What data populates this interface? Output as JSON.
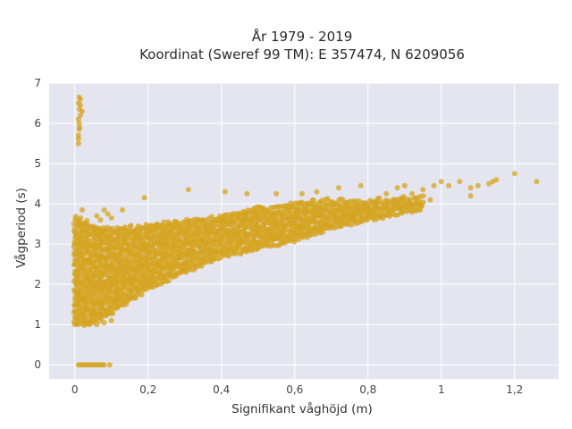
{
  "colors": {
    "plot_bg": "#e5e5ef",
    "grid": "#ffffff",
    "marker": "#d4a420"
  },
  "chart_data": {
    "type": "scatter",
    "title": "År 1979 - 2019",
    "subtitle": "Koordinat (Sweref 99 TM): E 357474, N 6209056",
    "xlabel": "Signifikant våghöjd (m)",
    "ylabel": "Vågperiod (s)",
    "xlim": [
      -0.07,
      1.32
    ],
    "ylim": [
      -0.35,
      7.0
    ],
    "x_ticks": [
      0,
      0.2,
      0.4,
      0.6,
      0.8,
      1,
      1.2
    ],
    "x_tick_labels": [
      "0",
      "0,2",
      "0,4",
      "0,6",
      "0,8",
      "1",
      "1,2"
    ],
    "y_ticks": [
      0,
      1,
      2,
      3,
      4,
      5,
      6,
      7
    ],
    "y_tick_labels": [
      "0",
      "1",
      "2",
      "3",
      "4",
      "5",
      "6",
      "7"
    ],
    "grid": true,
    "legend": "none",
    "series": [
      {
        "points": [
          [
            0.01,
            0
          ],
          [
            0.015,
            0
          ],
          [
            0.02,
            0
          ],
          [
            0.025,
            0
          ],
          [
            0.03,
            0
          ],
          [
            0.035,
            0
          ],
          [
            0.04,
            0
          ],
          [
            0.045,
            0
          ],
          [
            0.05,
            0
          ],
          [
            0.055,
            0
          ],
          [
            0.06,
            0
          ],
          [
            0.065,
            0
          ],
          [
            0.07,
            0
          ],
          [
            0.075,
            0
          ],
          [
            0.08,
            0
          ],
          [
            0.095,
            0
          ],
          [
            0.01,
            5.5
          ],
          [
            0.01,
            5.7
          ],
          [
            0.012,
            5.85
          ],
          [
            0.012,
            6.0
          ],
          [
            0.01,
            6.1
          ],
          [
            0.015,
            6.2
          ],
          [
            0.013,
            6.35
          ],
          [
            0.01,
            6.5
          ],
          [
            0.015,
            6.6
          ],
          [
            0.012,
            6.65
          ],
          [
            0.015,
            6.45
          ],
          [
            0.013,
            5.9
          ],
          [
            0.02,
            6.3
          ],
          [
            0.01,
            5.62
          ],
          [
            1.2,
            4.75
          ],
          [
            1.26,
            4.55
          ],
          [
            1.14,
            4.55
          ],
          [
            1.13,
            4.5
          ],
          [
            1.1,
            4.45
          ],
          [
            1.05,
            4.55
          ],
          [
            1.08,
            4.4
          ],
          [
            1.0,
            4.55
          ],
          [
            0.98,
            4.45
          ],
          [
            1.02,
            4.45
          ],
          [
            0.95,
            4.35
          ],
          [
            0.92,
            4.25
          ],
          [
            0.97,
            4.1
          ],
          [
            1.08,
            4.2
          ],
          [
            1.15,
            4.6
          ],
          [
            0.9,
            4.45
          ],
          [
            0.85,
            4.25
          ],
          [
            0.88,
            4.4
          ],
          [
            0.78,
            4.45
          ],
          [
            0.72,
            4.4
          ],
          [
            0.66,
            4.3
          ],
          [
            0.62,
            4.25
          ],
          [
            0.55,
            4.25
          ],
          [
            0.47,
            4.25
          ],
          [
            0.41,
            4.3
          ],
          [
            0.31,
            4.35
          ],
          [
            0.19,
            4.15
          ],
          [
            0.13,
            3.85
          ],
          [
            0.1,
            3.65
          ],
          [
            0.08,
            3.85
          ],
          [
            0.02,
            3.85
          ],
          [
            0.09,
            3.75
          ],
          [
            0.06,
            3.7
          ],
          [
            0.07,
            3.6
          ],
          [
            0.05,
            3.4
          ],
          [
            0.03,
            3.2
          ],
          [
            0.01,
            2.95
          ],
          [
            0.02,
            2.7
          ],
          [
            0.04,
            1.0
          ],
          [
            0.06,
            1.0
          ],
          [
            0.08,
            1.05
          ],
          [
            0.1,
            1.1
          ],
          [
            0.07,
            1.2
          ],
          [
            0.09,
            1.3
          ],
          [
            0.01,
            1.8
          ],
          [
            0.01,
            1.6
          ],
          [
            0.01,
            1.5
          ]
        ],
        "density_band": {
          "x_range": [
            0.0,
            0.95
          ],
          "upper": [
            [
              0.0,
              3.7
            ],
            [
              0.05,
              3.5
            ],
            [
              0.1,
              3.4
            ],
            [
              0.2,
              3.5
            ],
            [
              0.3,
              3.6
            ],
            [
              0.4,
              3.7
            ],
            [
              0.5,
              3.9
            ],
            [
              0.6,
              4.05
            ],
            [
              0.7,
              4.1
            ],
            [
              0.8,
              4.1
            ],
            [
              0.95,
              4.2
            ]
          ],
          "lower": [
            [
              0.0,
              1.0
            ],
            [
              0.05,
              1.05
            ],
            [
              0.1,
              1.3
            ],
            [
              0.2,
              1.9
            ],
            [
              0.3,
              2.3
            ],
            [
              0.4,
              2.7
            ],
            [
              0.5,
              2.9
            ],
            [
              0.6,
              3.1
            ],
            [
              0.7,
              3.4
            ],
            [
              0.8,
              3.6
            ],
            [
              0.95,
              3.9
            ]
          ]
        }
      }
    ]
  }
}
